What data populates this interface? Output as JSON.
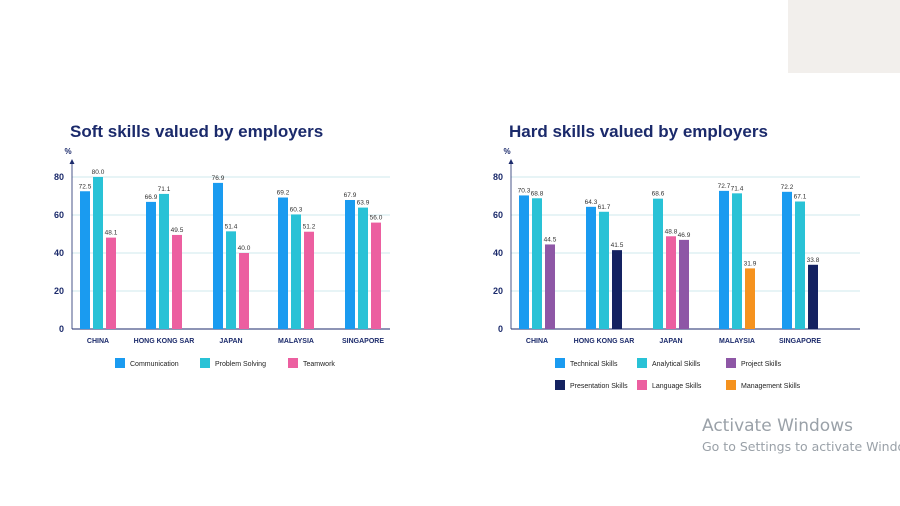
{
  "colors": {
    "title": "#1b2a6b",
    "axis_text": "#1b2a6b",
    "grid": "#cfe8ec",
    "axis": "#1b2a6b",
    "bar_label": "#333333",
    "watermark": "#9aa1a8"
  },
  "chart_data": [
    {
      "type": "bar",
      "title": "Soft skills valued by employers",
      "ylabel": "%",
      "ylim": [
        0,
        80
      ],
      "yticks": [
        0,
        20,
        40,
        60,
        80
      ],
      "grid": true,
      "categories": [
        "CHINA",
        "HONG KONG SAR",
        "JAPAN",
        "MALAYSIA",
        "SINGAPORE"
      ],
      "series": [
        {
          "name": "Communication",
          "color": "#1a9bf0",
          "values": [
            72.5,
            66.9,
            76.9,
            69.2,
            67.9
          ]
        },
        {
          "name": "Problem Solving",
          "color": "#29c2d6",
          "values": [
            80.0,
            71.1,
            51.4,
            60.3,
            63.9
          ]
        },
        {
          "name": "Teamwork",
          "color": "#ec5fa0",
          "values": [
            48.1,
            49.5,
            40.0,
            51.2,
            56.0
          ]
        }
      ],
      "legend_position": "bottom"
    },
    {
      "type": "bar",
      "title": "Hard skills valued by employers",
      "ylabel": "%",
      "ylim": [
        0,
        80
      ],
      "yticks": [
        0,
        20,
        40,
        60,
        80
      ],
      "grid": true,
      "categories": [
        "CHINA",
        "HONG KONG SAR",
        "JAPAN",
        "MALAYSIA",
        "SINGAPORE"
      ],
      "series": [
        {
          "name": "Technical Skills",
          "color": "#1a9bf0",
          "values": [
            70.3,
            64.3,
            null,
            72.7,
            72.2
          ]
        },
        {
          "name": "Analytical Skills",
          "color": "#29c2d6",
          "values": [
            68.8,
            61.7,
            68.6,
            71.4,
            67.1
          ]
        },
        {
          "name": "Project Skills",
          "color": "#8e57a6",
          "values": [
            44.5,
            null,
            46.9,
            null,
            null
          ]
        },
        {
          "name": "Presentation Skills",
          "color": "#142261",
          "values": [
            null,
            41.5,
            null,
            null,
            33.8
          ]
        },
        {
          "name": "Language Skills",
          "color": "#ec5fa0",
          "values": [
            null,
            null,
            48.8,
            null,
            null
          ]
        },
        {
          "name": "Management Skills",
          "color": "#f5921e",
          "values": [
            null,
            null,
            null,
            31.9,
            null
          ]
        }
      ],
      "bars_per_category": [
        [
          "Technical Skills",
          "Analytical Skills",
          "Project Skills"
        ],
        [
          "Technical Skills",
          "Analytical Skills",
          "Presentation Skills"
        ],
        [
          "Analytical Skills",
          "Language Skills",
          "Project Skills"
        ],
        [
          "Technical Skills",
          "Analytical Skills",
          "Management Skills"
        ],
        [
          "Technical Skills",
          "Analytical Skills",
          "Presentation Skills"
        ]
      ],
      "legend_position": "bottom"
    }
  ],
  "watermark": {
    "line1": "Activate Windows",
    "line2": "Go to Settings to activate Windows."
  }
}
